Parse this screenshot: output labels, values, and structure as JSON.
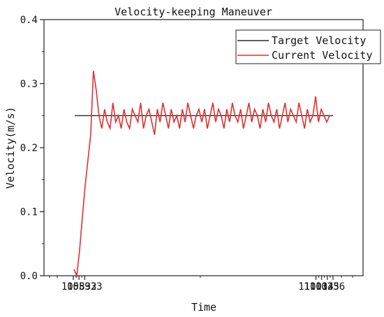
{
  "chart_data": {
    "type": "line",
    "title": "Velocity-keeping Maneuver",
    "xlabel": "Time",
    "ylabel": "Velocity(m/s)",
    "xlim": [
      105731,
      110337
    ],
    "ylim": [
      0.0,
      0.4
    ],
    "x_ticks": [
      "105832",
      "105933",
      "110034",
      "110135",
      "110236"
    ],
    "y_ticks": [
      "0.0",
      "0.1",
      "0.2",
      "0.3",
      "0.4"
    ],
    "grid": false,
    "legend_position": "top-right",
    "series": [
      {
        "name": "Target Velocity",
        "color": "#2b2b2b",
        "x": [
          105731,
          110337
        ],
        "values": [
          0.25,
          0.25
        ]
      },
      {
        "name": "Current Velocity",
        "color": "#e03030",
        "x": [
          105731,
          105738,
          105742,
          105747,
          105753,
          105760,
          105770,
          105780,
          105792,
          105800,
          105808,
          105816,
          105824,
          105832,
          105840,
          105846,
          105852,
          105858,
          105864,
          105870,
          105876,
          105882,
          105888,
          105894,
          105900,
          105906,
          105912,
          105918,
          105924,
          105933,
          105940,
          105946,
          105952,
          105958,
          105964,
          105970,
          105976,
          105982,
          105988,
          105994,
          106000,
          106006,
          106012,
          106018,
          106024,
          106034,
          110040,
          110046,
          110052,
          110058,
          110064,
          110070,
          110076,
          110082,
          110088,
          110094,
          110100,
          110106,
          110112,
          110118,
          110124,
          110135,
          110142,
          110148,
          110154,
          110160,
          110166,
          110172,
          110178,
          110184,
          110190,
          110196,
          110202,
          110208,
          110214,
          110220,
          110226,
          110236,
          110242,
          110248,
          110254,
          110260,
          110266,
          110272,
          110278,
          110284,
          110290,
          110296,
          110302,
          110308,
          110314,
          110320,
          110326
        ],
        "values": [
          0.01,
          0.0,
          0.04,
          0.09,
          0.14,
          0.18,
          0.22,
          0.32,
          0.29,
          0.25,
          0.23,
          0.26,
          0.24,
          0.23,
          0.27,
          0.24,
          0.25,
          0.23,
          0.26,
          0.24,
          0.23,
          0.26,
          0.25,
          0.24,
          0.27,
          0.23,
          0.25,
          0.26,
          0.24,
          0.22,
          0.26,
          0.24,
          0.27,
          0.25,
          0.23,
          0.26,
          0.24,
          0.25,
          0.23,
          0.26,
          0.24,
          0.27,
          0.25,
          0.23,
          0.25,
          0.26,
          0.24,
          0.26,
          0.23,
          0.25,
          0.27,
          0.24,
          0.26,
          0.25,
          0.23,
          0.26,
          0.24,
          0.27,
          0.25,
          0.24,
          0.26,
          0.23,
          0.25,
          0.27,
          0.24,
          0.26,
          0.25,
          0.23,
          0.26,
          0.24,
          0.27,
          0.25,
          0.24,
          0.26,
          0.23,
          0.25,
          0.27,
          0.24,
          0.26,
          0.25,
          0.24,
          0.27,
          0.25,
          0.23,
          0.26,
          0.24,
          0.25,
          0.28,
          0.24,
          0.26,
          0.25,
          0.24,
          0.25
        ]
      }
    ]
  }
}
